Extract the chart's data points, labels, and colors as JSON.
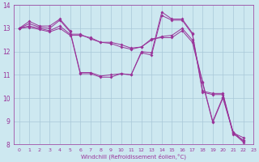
{
  "xlabel": "Windchill (Refroidissement éolien,°C)",
  "background_color": "#cde8f0",
  "grid_color": "#a8c8d8",
  "line_color": "#993399",
  "xlim": [
    -0.5,
    23
  ],
  "ylim": [
    8,
    14
  ],
  "yticks": [
    8,
    9,
    10,
    11,
    12,
    13,
    14
  ],
  "xticks": [
    0,
    1,
    2,
    3,
    4,
    5,
    6,
    7,
    8,
    9,
    10,
    11,
    12,
    13,
    14,
    15,
    16,
    17,
    18,
    19,
    20,
    21,
    22,
    23
  ],
  "series": [
    [
      13.0,
      13.3,
      13.1,
      13.1,
      13.4,
      12.9,
      11.1,
      11.1,
      10.95,
      11.0,
      11.05,
      11.0,
      12.0,
      11.95,
      13.7,
      13.4,
      13.4,
      12.8,
      10.3,
      10.2,
      10.2,
      8.5,
      8.3
    ],
    [
      13.0,
      13.2,
      13.05,
      13.0,
      13.35,
      12.85,
      11.05,
      11.05,
      10.9,
      10.9,
      11.05,
      11.0,
      11.95,
      11.85,
      13.55,
      13.35,
      13.35,
      12.75,
      10.25,
      10.15,
      10.15,
      8.45,
      8.2
    ],
    [
      13.0,
      13.1,
      13.0,
      12.9,
      13.1,
      12.75,
      12.75,
      12.55,
      12.4,
      12.35,
      12.2,
      12.1,
      12.2,
      12.5,
      12.65,
      12.7,
      13.0,
      12.5,
      10.7,
      9.0,
      10.05,
      8.55,
      8.15
    ],
    [
      13.0,
      13.05,
      12.95,
      12.85,
      13.0,
      12.7,
      12.7,
      12.6,
      12.4,
      12.4,
      12.3,
      12.15,
      12.2,
      12.55,
      12.6,
      12.6,
      12.9,
      12.4,
      10.65,
      8.95,
      10.0,
      8.5,
      8.1
    ]
  ]
}
